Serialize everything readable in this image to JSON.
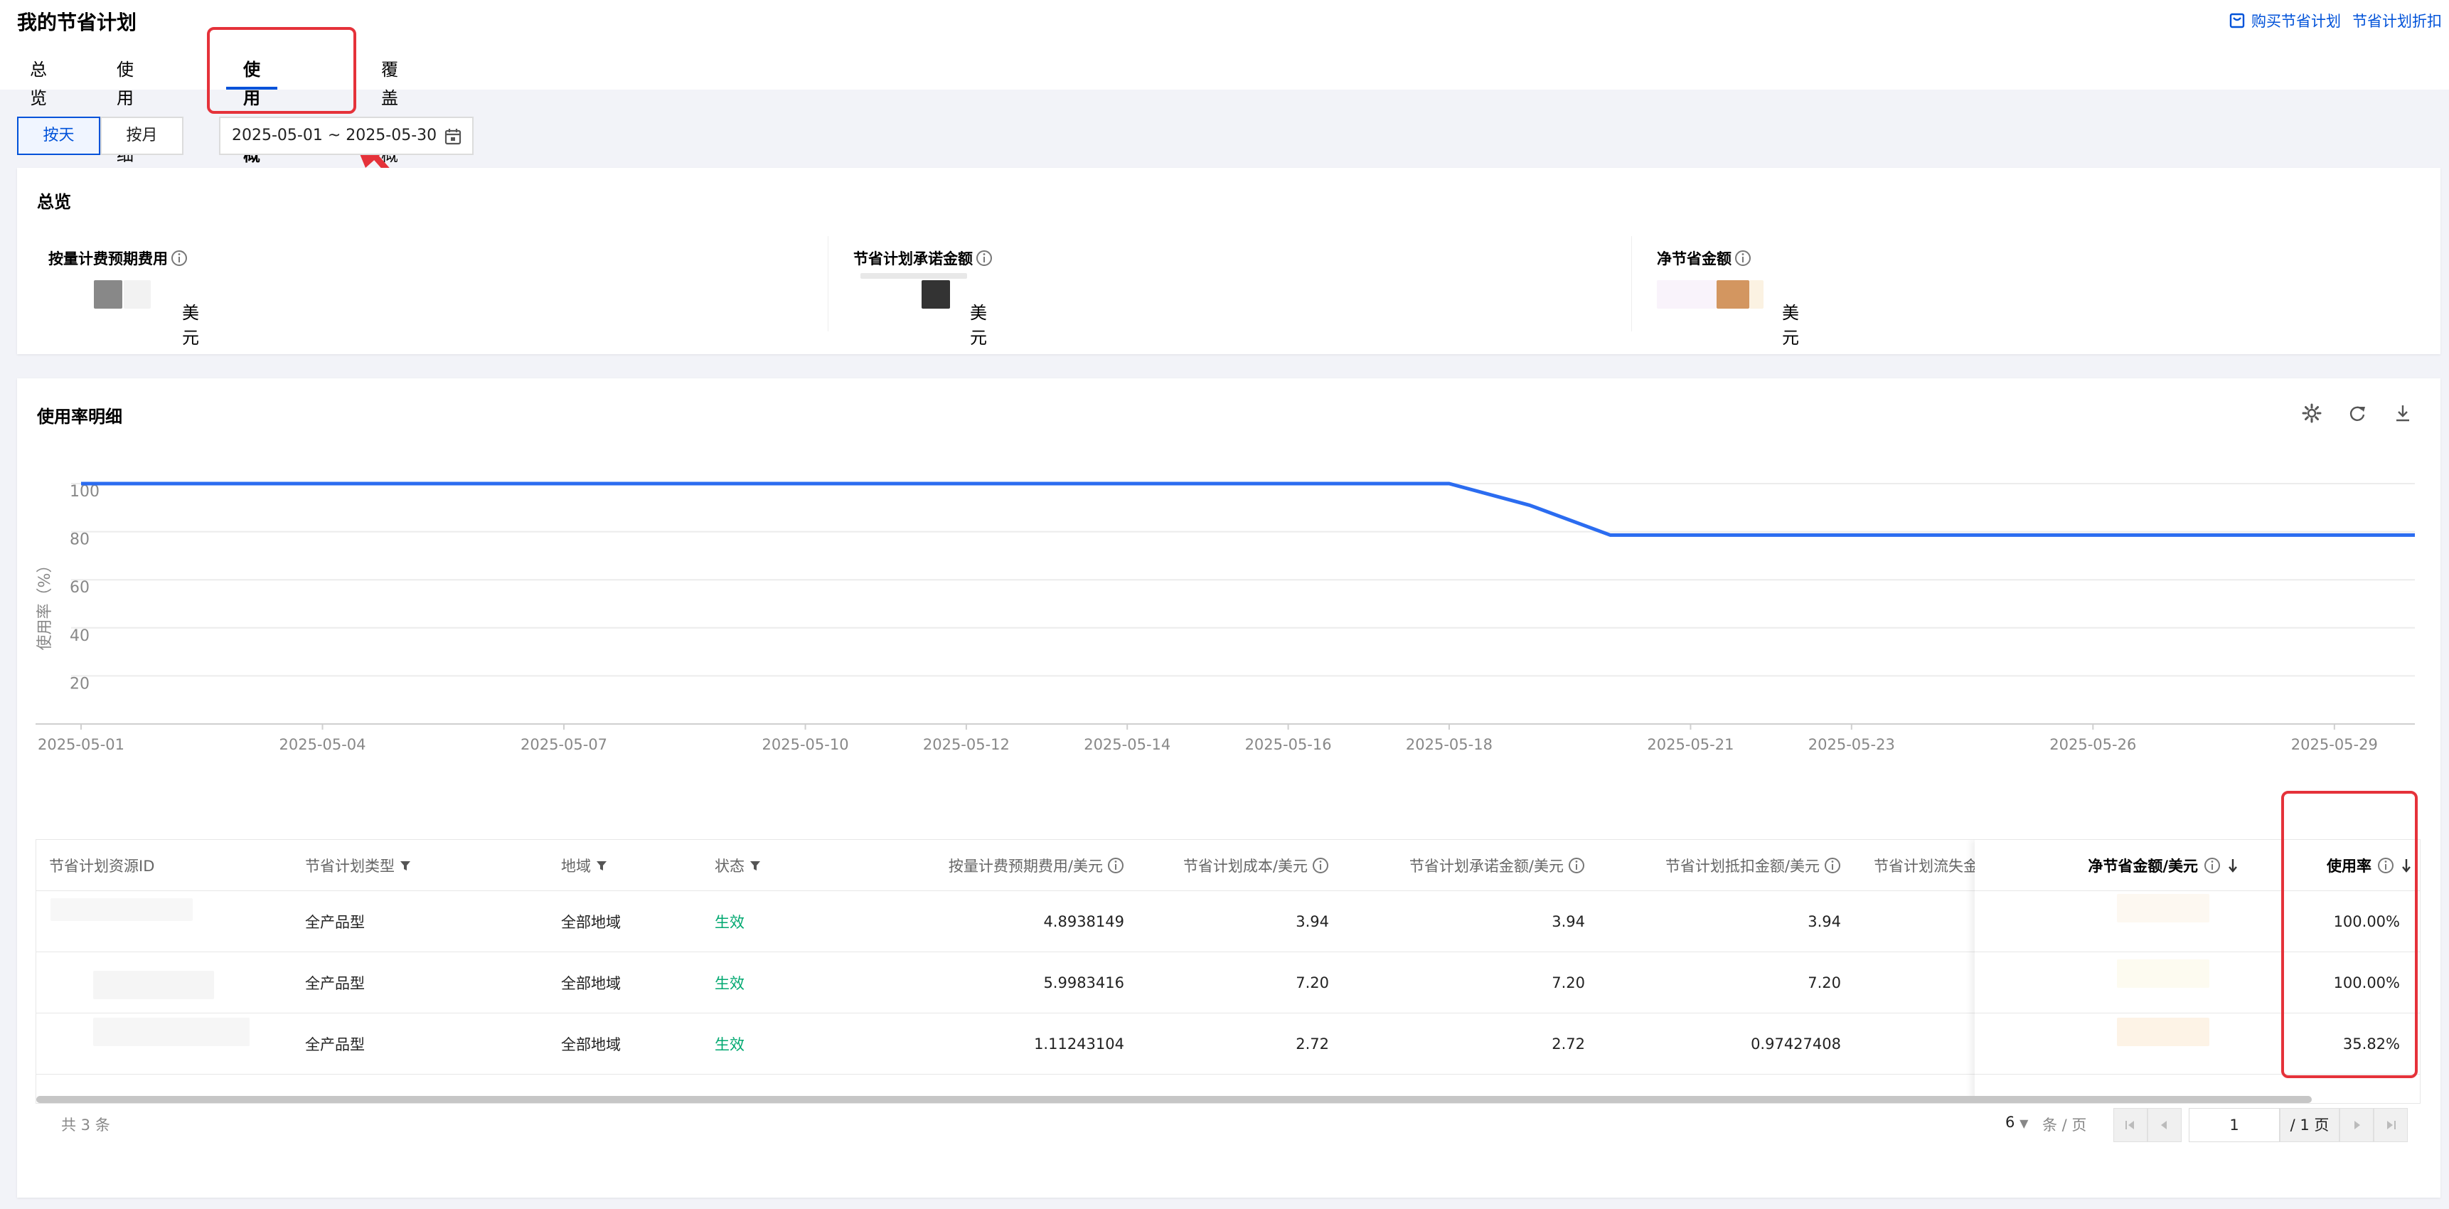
{
  "page": {
    "title": "我的节省计划",
    "links": {
      "buy": "购买节省计划",
      "discount": "节省计划折扣"
    },
    "tabs": [
      "总览",
      "使用明细",
      "使用率概况",
      "覆盖率概况"
    ],
    "active_tab": "使用率概况"
  },
  "filters": {
    "granularity": [
      "按天",
      "按月"
    ],
    "active_granularity": "按天",
    "date_range": "2025-05-01 ~ 2025-05-30"
  },
  "overview": {
    "title": "总览",
    "metrics": [
      {
        "label": "按量计费预期费用",
        "unit": "美元"
      },
      {
        "label": "节省计划承诺金额",
        "unit": "美元"
      },
      {
        "label": "净节省金额",
        "unit": "美元"
      }
    ]
  },
  "detail": {
    "title": "使用率明细",
    "tools": [
      "settings-icon",
      "refresh-icon",
      "download-icon"
    ]
  },
  "chart_data": {
    "type": "line",
    "title": "",
    "ylabel": "使用率（%）",
    "xlabel": "",
    "ylim": [
      0,
      100
    ],
    "yticks": [
      20,
      40,
      60,
      80,
      100
    ],
    "xticks": [
      "2025-05-01",
      "2025-05-04",
      "2025-05-07",
      "2025-05-10",
      "2025-05-12",
      "2025-05-14",
      "2025-05-16",
      "2025-05-18",
      "2025-05-21",
      "2025-05-23",
      "2025-05-26",
      "2025-05-29"
    ],
    "series": [
      {
        "color": "#2b6cf0",
        "x": [
          "2025-05-01",
          "2025-05-18",
          "2025-05-19",
          "2025-05-20",
          "2025-05-30"
        ],
        "y": [
          100,
          100,
          91,
          78.6,
          78.6
        ]
      }
    ],
    "grid": true
  },
  "table": {
    "columns": [
      "节省计划资源ID",
      "节省计划类型",
      "地域",
      "状态",
      "按量计费预期费用/美元",
      "节省计划成本/美元",
      "节省计划承诺金额/美元",
      "节省计划抵扣金额/美元",
      "节省计划流失金"
    ],
    "fixed_columns": [
      "净节省金额/美元",
      "使用率"
    ],
    "rows": [
      {
        "type": "全产品型",
        "region": "全部地域",
        "status": "生效",
        "ondemand": "4.8938149",
        "cost": "3.94",
        "commit": "3.94",
        "deduct": "3.94",
        "usage": "100.00%"
      },
      {
        "type": "全产品型",
        "region": "全部地域",
        "status": "生效",
        "ondemand": "5.9983416",
        "cost": "7.20",
        "commit": "7.20",
        "deduct": "7.20",
        "usage": "100.00%"
      },
      {
        "type": "全产品型",
        "region": "全部地域",
        "status": "生效",
        "ondemand": "1.11243104",
        "cost": "2.72",
        "commit": "2.72",
        "deduct": "0.97427408",
        "usage": "35.82%"
      }
    ]
  },
  "pagination": {
    "total": "共 3 条",
    "page_size": "6",
    "page_size_unit": "条 / 页",
    "current": "1",
    "total_pages": "/ 1 页"
  },
  "colors": {
    "accent": "#0052d9",
    "annotation": "#e5323a",
    "success": "#00a870",
    "line": "#2b6cf0"
  }
}
